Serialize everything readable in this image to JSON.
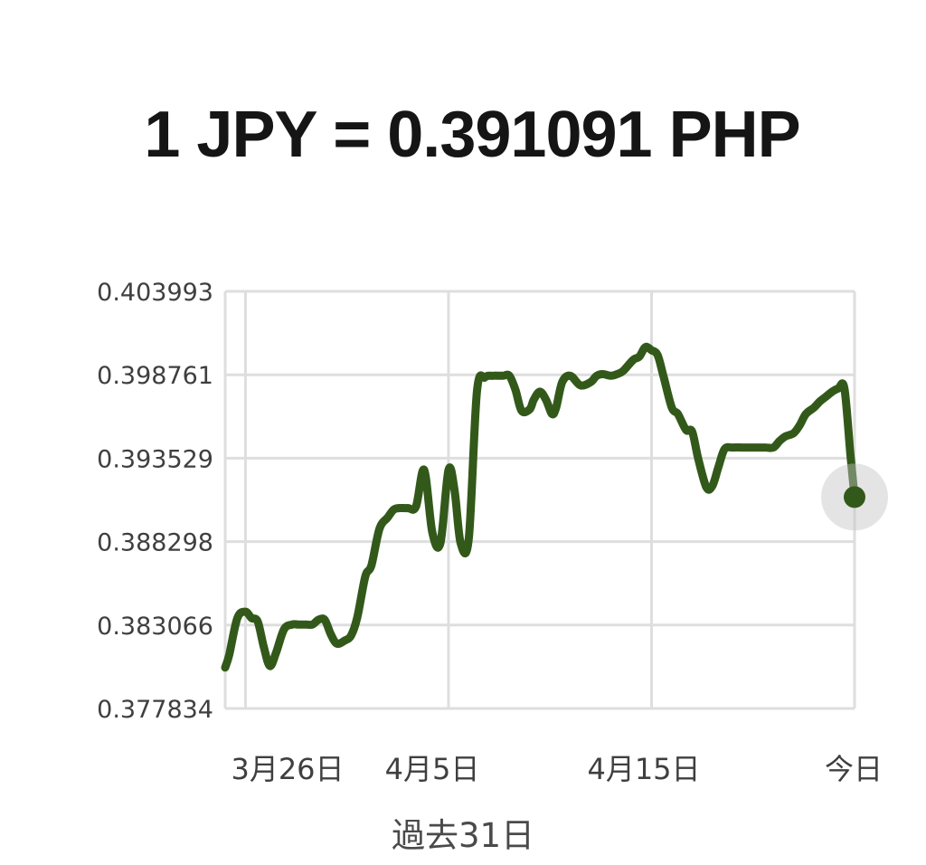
{
  "header": {
    "rate_text": "1 JPY = 0.391091 PHP"
  },
  "chart_data": {
    "type": "line",
    "ylim": [
      0.377834,
      0.403993
    ],
    "y_ticks": [
      "0.403993",
      "0.398761",
      "0.393529",
      "0.388298",
      "0.383066",
      "0.377834"
    ],
    "x_tick_labels": [
      "3月26日",
      "4月5日",
      "4月15日",
      "今日"
    ],
    "x_tick_day_index": [
      10,
      20,
      30,
      40
    ],
    "xlabel": "過去31日",
    "grid": true,
    "series": [
      {
        "color": "#33591a",
        "x": [
          9,
          9.2,
          9.6,
          10,
          10.3,
          10.6,
          10.9,
          11.2,
          11.5,
          11.9,
          12.3,
          12.6,
          13,
          13.3,
          13.6,
          13.9,
          14.2,
          14.5,
          14.9,
          15.2,
          15.5,
          15.9,
          16.2,
          16.6,
          17,
          17.3,
          17.6,
          18,
          18.4,
          18.8,
          19.2,
          19.6,
          20,
          20.3,
          20.6,
          21,
          21.4,
          21.8,
          22.2,
          22.5,
          22.7,
          23,
          23.3,
          23.6,
          24,
          24.2,
          24.5,
          24.8,
          25.1,
          25.3,
          25.6,
          26,
          26.5,
          27,
          27.3,
          27.6,
          28,
          28.3,
          28.6,
          29.1,
          29.4,
          29.7,
          30,
          30.3,
          30.6,
          31,
          31.3,
          31.7,
          32,
          32.3,
          32.7,
          33,
          33.3,
          33.6,
          34,
          34.5,
          35,
          35.3,
          35.6,
          36,
          36.3,
          36.6,
          37,
          37.3,
          37.6,
          38,
          38.3,
          38.6,
          38.9,
          39.2,
          39.5,
          39.8,
          40
        ],
        "y": [
          0.3804,
          0.3812,
          0.3835,
          0.3839,
          0.3835,
          0.3833,
          0.3817,
          0.3805,
          0.3813,
          0.3828,
          0.3831,
          0.3831,
          0.3831,
          0.3831,
          0.3834,
          0.3834,
          0.3825,
          0.3819,
          0.3821,
          0.3824,
          0.3835,
          0.3861,
          0.3868,
          0.3891,
          0.3898,
          0.3903,
          0.3904,
          0.3904,
          0.3905,
          0.3928,
          0.3889,
          0.3882,
          0.3928,
          0.3915,
          0.3882,
          0.3885,
          0.3977,
          0.3986,
          0.3987,
          0.3987,
          0.3987,
          0.3987,
          0.3978,
          0.3965,
          0.3966,
          0.3972,
          0.3977,
          0.3972,
          0.3963,
          0.3967,
          0.3983,
          0.3987,
          0.3981,
          0.3983,
          0.3987,
          0.3988,
          0.3987,
          0.3988,
          0.399,
          0.3997,
          0.3999,
          0.4005,
          0.4003,
          0.4,
          0.3986,
          0.3967,
          0.3963,
          0.3953,
          0.3952,
          0.3935,
          0.3917,
          0.3918,
          0.393,
          0.3941,
          0.3942,
          0.3942,
          0.3942,
          0.3942,
          0.3942,
          0.3942,
          0.3946,
          0.3949,
          0.3951,
          0.3956,
          0.3963,
          0.3967,
          0.3971,
          0.3974,
          0.3977,
          0.3979,
          0.3979,
          0.3937,
          0.391091
        ]
      }
    ]
  }
}
